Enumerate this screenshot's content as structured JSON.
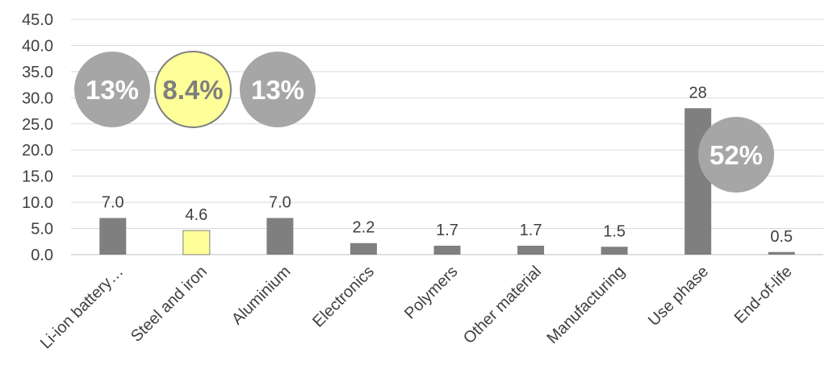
{
  "chart_data": {
    "type": "bar",
    "categories": [
      "Li-ion battery…",
      "Steel and iron",
      "Aluminium",
      "Electronics",
      "Polymers",
      "Other material",
      "Manufacturing",
      "Use phase",
      "End-of-life"
    ],
    "values": [
      7.0,
      4.6,
      7.0,
      2.2,
      1.7,
      1.7,
      1.5,
      28,
      0.5
    ],
    "data_labels": [
      "7.0",
      "4.6",
      "7.0",
      "2.2",
      "1.7",
      "1.7",
      "1.5",
      "28",
      "0.5"
    ],
    "y_ticks": [
      "0.0",
      "5.0",
      "10.0",
      "15.0",
      "20.0",
      "25.0",
      "30.0",
      "35.0",
      "40.0",
      "45.0"
    ],
    "ylim": [
      0,
      45
    ],
    "grid": true,
    "bar_colors": [
      "#7f7f7f",
      "#ffff99",
      "#7f7f7f",
      "#7f7f7f",
      "#7f7f7f",
      "#7f7f7f",
      "#7f7f7f",
      "#7f7f7f",
      "#7f7f7f"
    ],
    "annotations": [
      {
        "text": "13%",
        "category_index": 0,
        "fill": "#a6a6a6",
        "text_color": "#ffffff"
      },
      {
        "text": "8.4%",
        "category_index": 1,
        "fill": "#ffff99",
        "text_color": "#7f7f7f"
      },
      {
        "text": "13%",
        "category_index": 2,
        "fill": "#a6a6a6",
        "text_color": "#ffffff"
      },
      {
        "text": "52%",
        "category_index": 7,
        "fill": "#a6a6a6",
        "text_color": "#ffffff"
      }
    ]
  },
  "colors": {
    "text": "#404040",
    "grid": "#d9d9d9",
    "axis": "#bfbfbf"
  }
}
